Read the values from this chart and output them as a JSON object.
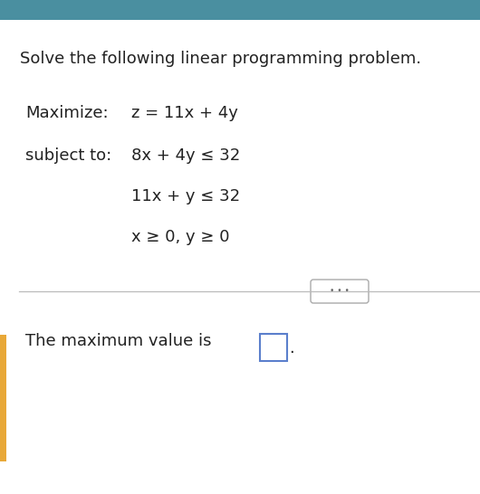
{
  "bg_color": "#ffffff",
  "top_bar_color": "#4a8fa0",
  "left_accent_color": "#e8a838",
  "title": "Solve the following linear programming problem.",
  "maximize_label": "Maximize:",
  "maximize_expr": "z = 11x + 4y",
  "subject_label": "subject to:",
  "constraint1": "8x + 4y ≤ 32",
  "constraint2": "11x + y ≤ 32",
  "constraint3": "x ≥ 0, y ≥ 0",
  "answer_text": "The maximum value is",
  "font_size_title": 13.0,
  "font_size_body": 13.0,
  "box_border_color": "#5b7fcc"
}
